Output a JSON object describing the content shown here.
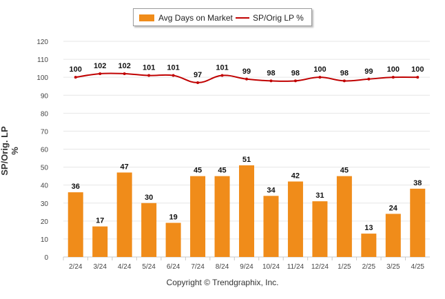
{
  "legend": {
    "bar_label": "Avg Days on Market",
    "line_label": "SP/Orig LP %"
  },
  "ylabel": "SP/Orig. LP %",
  "copyright": "Copyright © Trendgraphix, Inc.",
  "colors": {
    "bar": "#f08c1a",
    "line": "#c00000",
    "grid": "#e6e6e6",
    "axis_text": "#444444"
  },
  "chart_data": {
    "type": "bar",
    "title": "",
    "xlabel": "",
    "ylabel": "SP/Orig. LP %",
    "ylim": [
      0,
      120
    ],
    "yticks": [
      0,
      10,
      20,
      30,
      40,
      50,
      60,
      70,
      80,
      90,
      100,
      110,
      120
    ],
    "grid": true,
    "legend_position": "top-center",
    "categories": [
      "2/24",
      "3/24",
      "4/24",
      "5/24",
      "6/24",
      "7/24",
      "8/24",
      "9/24",
      "10/24",
      "11/24",
      "12/24",
      "1/25",
      "2/25",
      "3/25",
      "4/25"
    ],
    "series": [
      {
        "name": "Avg Days on Market",
        "type": "bar",
        "values": [
          36,
          17,
          47,
          30,
          19,
          45,
          45,
          51,
          34,
          42,
          31,
          45,
          13,
          24,
          38
        ]
      },
      {
        "name": "SP/Orig LP %",
        "type": "line",
        "values": [
          100,
          102,
          102,
          101,
          101,
          97,
          101,
          99,
          98,
          98,
          100,
          98,
          99,
          100,
          100
        ]
      }
    ]
  }
}
